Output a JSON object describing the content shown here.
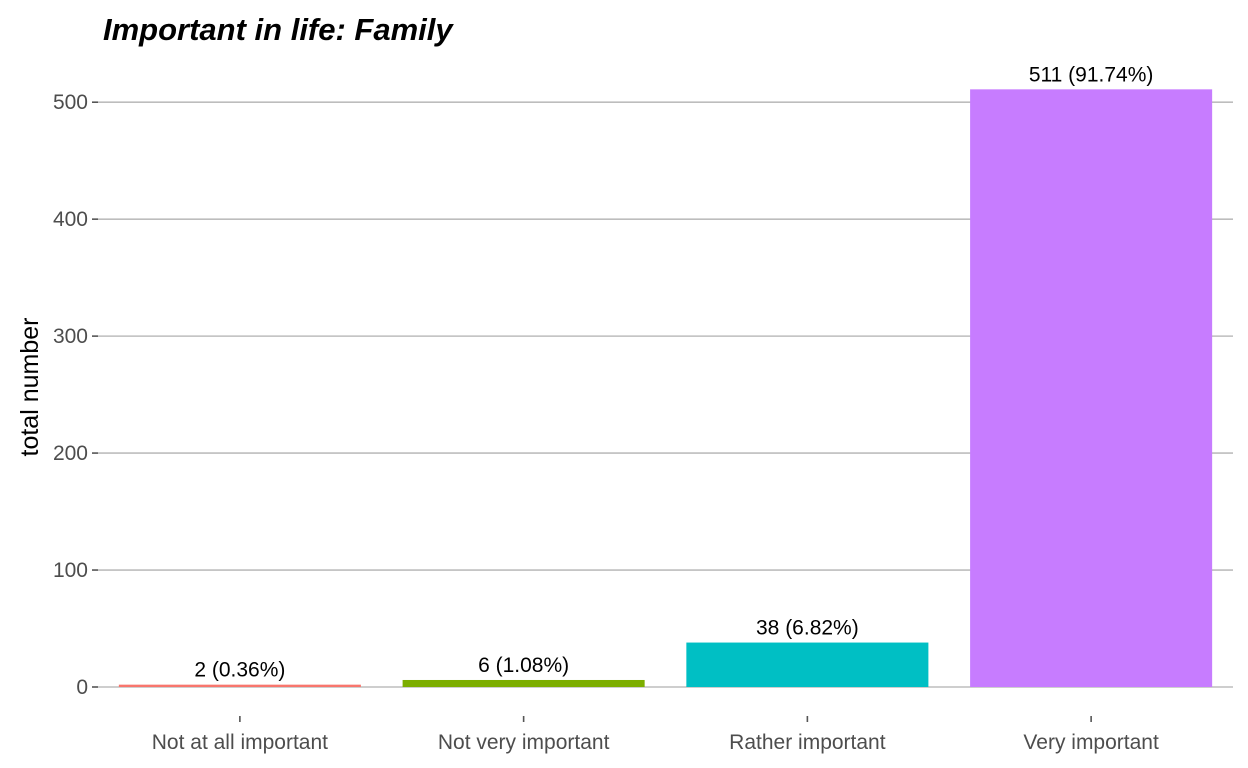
{
  "chart_data": {
    "type": "bar",
    "title": "Important in life: Family",
    "xlabel": "",
    "ylabel": "total number",
    "categories": [
      "Not at all important",
      "Not very important",
      "Rather important",
      "Very important"
    ],
    "values": [
      2,
      6,
      38,
      511
    ],
    "data_labels": [
      "2 (0.36%)",
      "6 (1.08%)",
      "38 (6.82%)",
      "511 (91.74%)"
    ],
    "colors": [
      "#F8766D",
      "#7CAE00",
      "#00BFC4",
      "#C77CFF"
    ],
    "yticks": [
      0,
      100,
      200,
      300,
      400,
      500
    ],
    "ylim": [
      0,
      536
    ],
    "grid": true,
    "legend": "none"
  }
}
